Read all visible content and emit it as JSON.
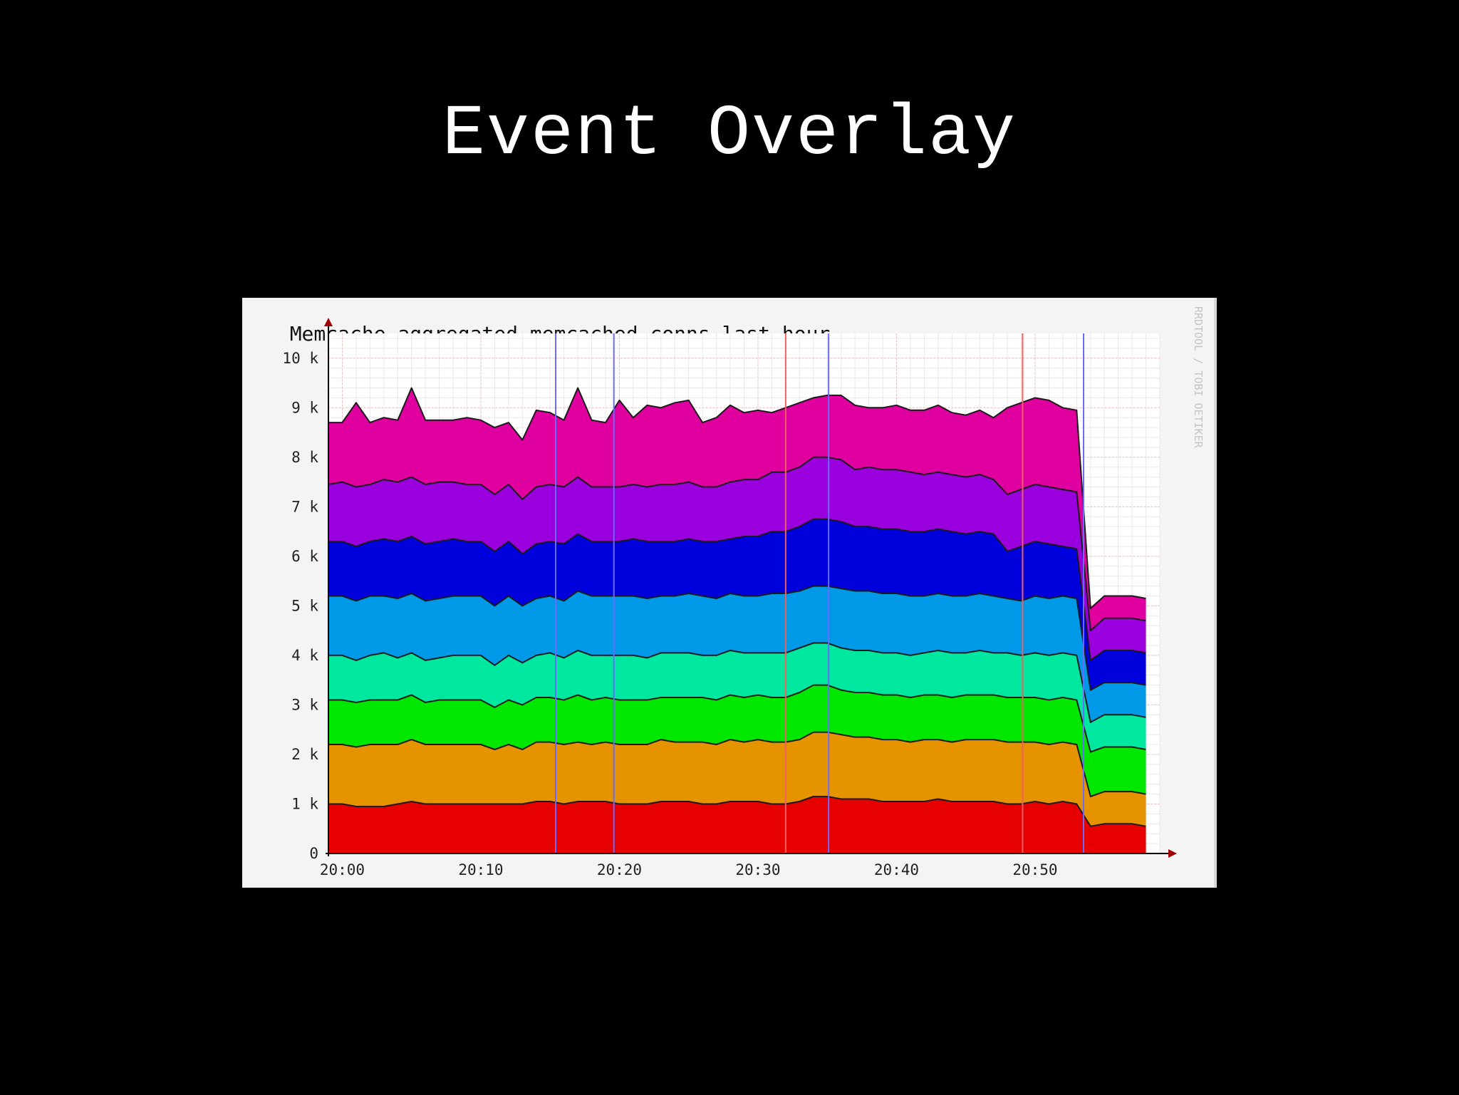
{
  "slide": {
    "title": "Event Overlay"
  },
  "colors": {
    "page_background": "#000000",
    "chart_background": "#f4f4f4",
    "plot_background": "#ffffff",
    "grid_minor": "#e8e8e8",
    "grid_major": "#f2b8b8",
    "axis": "#000000",
    "arrow": "#a00000",
    "event_red": "#f06060",
    "event_blue": "#6a6aff"
  },
  "chart_data": {
    "type": "area",
    "stacked": true,
    "title": "Memcache aggregated memcached_conns last hour",
    "watermark": "RRDTOOL / TOBI OETIKER",
    "xlabel": "",
    "ylabel": "",
    "x_unit": "minutes after 19:59",
    "x": [
      0,
      1,
      2,
      3,
      4,
      5,
      6,
      7,
      8,
      9,
      10,
      11,
      12,
      13,
      14,
      15,
      16,
      17,
      18,
      19,
      20,
      21,
      22,
      23,
      24,
      25,
      26,
      27,
      28,
      29,
      30,
      31,
      32,
      33,
      34,
      35,
      36,
      37,
      38,
      39,
      40,
      41,
      42,
      43,
      44,
      45,
      46,
      47,
      48,
      49,
      50,
      51,
      52,
      53,
      54,
      55,
      56,
      57,
      58,
      59
    ],
    "xlim": [
      0,
      60
    ],
    "ylim": [
      0,
      10500
    ],
    "x_ticks": [
      {
        "at": 1,
        "label": "20:00"
      },
      {
        "at": 11,
        "label": "20:10"
      },
      {
        "at": 21,
        "label": "20:20"
      },
      {
        "at": 31,
        "label": "20:30"
      },
      {
        "at": 41,
        "label": "20:40"
      },
      {
        "at": 51,
        "label": "20:50"
      }
    ],
    "y_ticks": [
      {
        "value": 0,
        "label": "0"
      },
      {
        "value": 1000,
        "label": "1 k"
      },
      {
        "value": 2000,
        "label": "2 k"
      },
      {
        "value": 3000,
        "label": "3 k"
      },
      {
        "value": 4000,
        "label": "4 k"
      },
      {
        "value": 5000,
        "label": "5 k"
      },
      {
        "value": 6000,
        "label": "6 k"
      },
      {
        "value": 7000,
        "label": "7 k"
      },
      {
        "value": 8000,
        "label": "8 k"
      },
      {
        "value": 9000,
        "label": "9 k"
      },
      {
        "value": 10000,
        "label": "10 k"
      }
    ],
    "grid": true,
    "legend": "none",
    "series": [
      {
        "color": "#e60000",
        "values": [
          1000,
          1000,
          950,
          950,
          950,
          1000,
          1050,
          1000,
          1000,
          1000,
          1000,
          1000,
          1000,
          1000,
          1000,
          1050,
          1050,
          1000,
          1050,
          1050,
          1050,
          1000,
          1000,
          1000,
          1050,
          1050,
          1050,
          1000,
          1000,
          1050,
          1050,
          1050,
          1000,
          1000,
          1050,
          1150,
          1150,
          1100,
          1100,
          1100,
          1050,
          1050,
          1050,
          1050,
          1100,
          1050,
          1050,
          1050,
          1050,
          1000,
          1000,
          1050,
          1000,
          1050,
          1000,
          550,
          600,
          600,
          600,
          550
        ]
      },
      {
        "color": "#e59400",
        "values": [
          1200,
          1200,
          1200,
          1250,
          1250,
          1200,
          1250,
          1200,
          1200,
          1200,
          1200,
          1200,
          1100,
          1200,
          1100,
          1200,
          1200,
          1200,
          1200,
          1150,
          1200,
          1200,
          1200,
          1200,
          1250,
          1200,
          1200,
          1250,
          1200,
          1250,
          1200,
          1250,
          1250,
          1250,
          1250,
          1300,
          1300,
          1300,
          1250,
          1250,
          1250,
          1250,
          1200,
          1250,
          1200,
          1200,
          1250,
          1250,
          1250,
          1250,
          1250,
          1200,
          1200,
          1200,
          1200,
          600,
          650,
          650,
          650,
          650
        ]
      },
      {
        "color": "#00e800",
        "values": [
          900,
          900,
          900,
          900,
          900,
          900,
          900,
          850,
          900,
          900,
          900,
          900,
          850,
          900,
          900,
          900,
          900,
          900,
          950,
          900,
          900,
          900,
          900,
          900,
          850,
          900,
          900,
          900,
          900,
          900,
          900,
          900,
          900,
          900,
          950,
          950,
          950,
          900,
          900,
          900,
          900,
          900,
          900,
          900,
          900,
          900,
          900,
          900,
          900,
          900,
          900,
          900,
          900,
          900,
          900,
          900,
          900,
          900,
          900,
          900
        ]
      },
      {
        "color": "#00e8a0",
        "values": [
          900,
          900,
          850,
          900,
          950,
          850,
          850,
          850,
          850,
          900,
          900,
          900,
          850,
          900,
          850,
          850,
          900,
          850,
          900,
          900,
          850,
          900,
          900,
          850,
          900,
          900,
          900,
          850,
          900,
          900,
          900,
          850,
          900,
          900,
          900,
          850,
          850,
          850,
          850,
          850,
          850,
          850,
          850,
          850,
          900,
          900,
          850,
          900,
          850,
          900,
          850,
          900,
          900,
          900,
          900,
          600,
          650,
          650,
          650,
          650
        ]
      },
      {
        "color": "#0099e8",
        "values": [
          1200,
          1200,
          1200,
          1200,
          1150,
          1200,
          1200,
          1200,
          1200,
          1200,
          1200,
          1200,
          1200,
          1200,
          1150,
          1150,
          1150,
          1150,
          1200,
          1200,
          1200,
          1200,
          1200,
          1200,
          1150,
          1150,
          1200,
          1200,
          1150,
          1150,
          1150,
          1150,
          1200,
          1200,
          1150,
          1150,
          1150,
          1200,
          1200,
          1200,
          1200,
          1200,
          1200,
          1150,
          1150,
          1150,
          1150,
          1150,
          1150,
          1100,
          1100,
          1150,
          1150,
          1150,
          1150,
          650,
          650,
          650,
          650,
          650
        ]
      },
      {
        "color": "#0000dd",
        "values": [
          1100,
          1100,
          1100,
          1100,
          1150,
          1150,
          1150,
          1150,
          1150,
          1150,
          1100,
          1100,
          1100,
          1100,
          1050,
          1100,
          1100,
          1150,
          1150,
          1100,
          1100,
          1100,
          1150,
          1150,
          1100,
          1100,
          1100,
          1100,
          1150,
          1100,
          1200,
          1200,
          1250,
          1250,
          1300,
          1350,
          1350,
          1350,
          1300,
          1300,
          1300,
          1300,
          1300,
          1300,
          1300,
          1300,
          1250,
          1250,
          1250,
          950,
          1100,
          1100,
          1100,
          1000,
          1000,
          600,
          650,
          650,
          650,
          650
        ]
      },
      {
        "color": "#9900dd",
        "values": [
          1150,
          1200,
          1200,
          1150,
          1200,
          1200,
          1200,
          1200,
          1200,
          1150,
          1150,
          1150,
          1150,
          1150,
          1100,
          1150,
          1150,
          1150,
          1150,
          1100,
          1100,
          1100,
          1100,
          1100,
          1150,
          1150,
          1150,
          1100,
          1100,
          1150,
          1150,
          1150,
          1200,
          1200,
          1200,
          1250,
          1250,
          1250,
          1150,
          1200,
          1200,
          1200,
          1200,
          1150,
          1150,
          1150,
          1150,
          1150,
          1100,
          1150,
          1150,
          1150,
          1150,
          1150,
          1150,
          600,
          650,
          650,
          650,
          650
        ]
      },
      {
        "color": "#e000a0",
        "values": [
          1250,
          1200,
          1700,
          1250,
          1250,
          1250,
          1800,
          1300,
          1250,
          1250,
          1350,
          1300,
          1350,
          1250,
          1200,
          1550,
          1450,
          1350,
          1800,
          1350,
          1300,
          1750,
          1350,
          1650,
          1550,
          1650,
          1650,
          1300,
          1400,
          1550,
          1350,
          1400,
          1200,
          1300,
          1300,
          1200,
          1250,
          1300,
          1300,
          1200,
          1250,
          1300,
          1250,
          1300,
          1350,
          1250,
          1250,
          1300,
          1250,
          1750,
          1750,
          1750,
          1750,
          1650,
          1650,
          450,
          450,
          450,
          450,
          450
        ]
      }
    ],
    "events": [
      {
        "at": 16.4,
        "color": "#6a6aff"
      },
      {
        "at": 20.6,
        "color": "#6a6aff"
      },
      {
        "at": 33.0,
        "color": "#f06060"
      },
      {
        "at": 36.1,
        "color": "#6a6aff"
      },
      {
        "at": 50.1,
        "color": "#f06060"
      },
      {
        "at": 54.5,
        "color": "#6a6aff"
      }
    ]
  }
}
